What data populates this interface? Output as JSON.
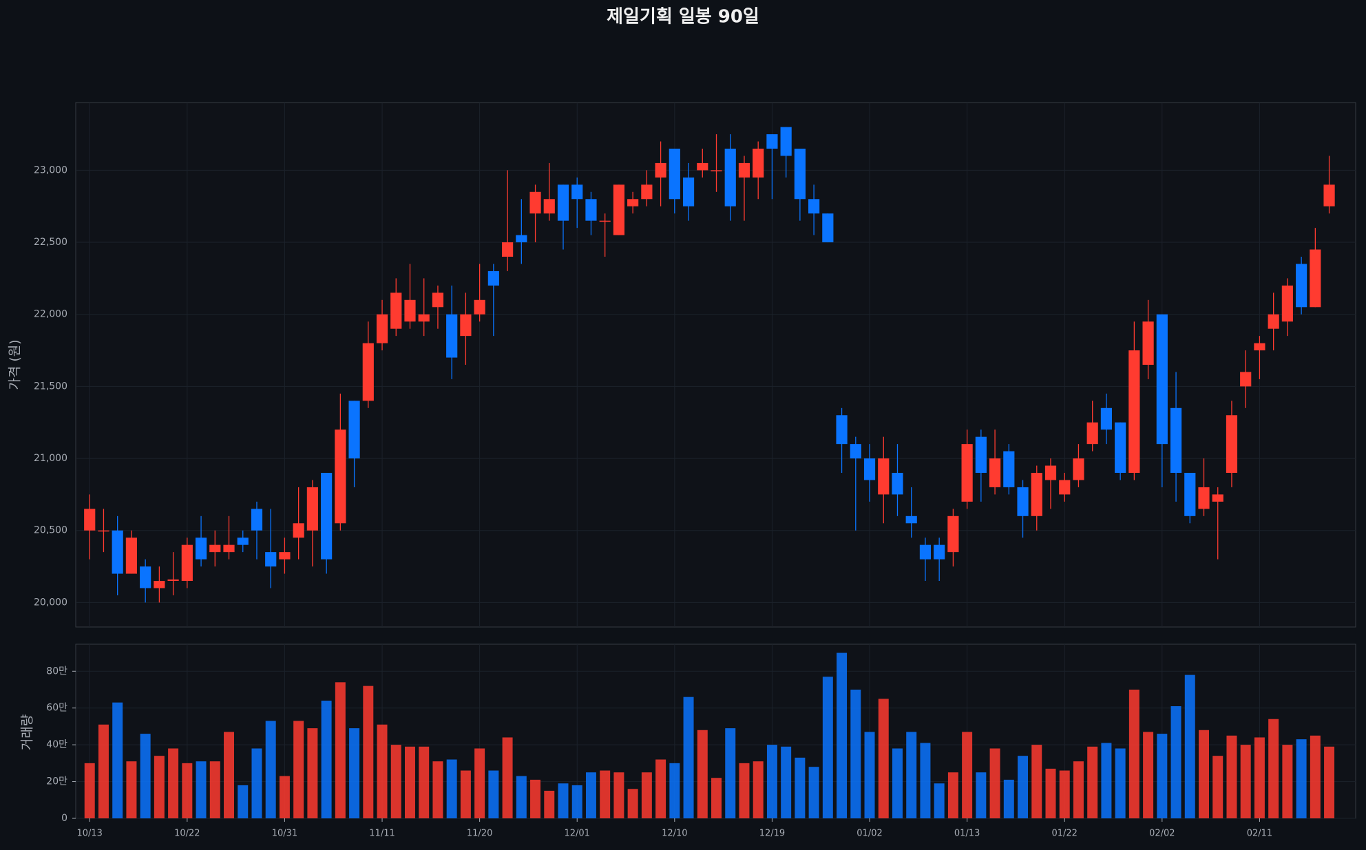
{
  "chart_data": {
    "type": "candlestick",
    "title": "제일기획 일봉 90일",
    "ylabel": "가격 (원)",
    "y2label": "거래량",
    "categories": [
      "10/13",
      null,
      null,
      null,
      null,
      null,
      null,
      "10/22",
      null,
      null,
      null,
      null,
      null,
      null,
      "10/31",
      null,
      null,
      null,
      null,
      null,
      null,
      "11/11",
      null,
      null,
      null,
      null,
      null,
      null,
      "11/20",
      null,
      null,
      null,
      null,
      null,
      null,
      "12/01",
      null,
      null,
      null,
      null,
      null,
      null,
      "12/10",
      null,
      null,
      null,
      null,
      null,
      null,
      "12/19",
      null,
      null,
      null,
      null,
      null,
      null,
      "01/02",
      null,
      null,
      null,
      null,
      null,
      null,
      "01/13",
      null,
      null,
      null,
      null,
      null,
      null,
      "01/22",
      null,
      null,
      null,
      null,
      null,
      null,
      "02/02",
      null,
      null,
      null,
      null,
      null,
      null,
      "02/11",
      null,
      null,
      null,
      null,
      null
    ],
    "open": [
      20500,
      20500,
      20500,
      20200,
      20250,
      20100,
      20150,
      20150,
      20450,
      20350,
      20350,
      20450,
      20650,
      20350,
      20300,
      20450,
      20500,
      20900,
      20550,
      21400,
      21400,
      21800,
      21900,
      21950,
      21950,
      22050,
      22000,
      21850,
      22000,
      22300,
      22400,
      22550,
      22700,
      22700,
      22900,
      22900,
      22800,
      22650,
      22550,
      22750,
      22800,
      22950,
      23150,
      22950,
      23000,
      23000,
      23150,
      22950,
      22950,
      23250,
      23300,
      23150,
      22800,
      22700,
      21300,
      21100,
      21000,
      20750,
      20900,
      20600,
      20400,
      20400,
      20350,
      20700,
      21150,
      20800,
      21050,
      20800,
      20600,
      20850,
      20750,
      20850,
      21100,
      21350,
      21250,
      20900,
      21650,
      22000,
      21350,
      20900,
      20650,
      20700,
      20900,
      21500,
      21750,
      21900,
      21950,
      22350,
      22050,
      22750
    ],
    "high": [
      20750,
      20650,
      20600,
      20500,
      20300,
      20250,
      20350,
      20450,
      20600,
      20500,
      20600,
      20500,
      20700,
      20650,
      20450,
      20800,
      20850,
      20900,
      21450,
      21400,
      21950,
      22100,
      22250,
      22350,
      22250,
      22200,
      22200,
      22150,
      22350,
      22350,
      23000,
      22800,
      22900,
      23050,
      22900,
      22950,
      22850,
      22700,
      22900,
      22850,
      23000,
      23200,
      23150,
      23050,
      23150,
      23250,
      23250,
      23100,
      23200,
      23250,
      23300,
      23150,
      22900,
      22700,
      21350,
      21150,
      21100,
      21150,
      21100,
      20800,
      20450,
      20450,
      20650,
      21200,
      21200,
      21200,
      21100,
      20850,
      20950,
      21000,
      20900,
      21100,
      21400,
      21450,
      21250,
      21950,
      22100,
      22000,
      21600,
      20900,
      21000,
      20800,
      21400,
      21750,
      21850,
      22150,
      22250,
      22400,
      22600,
      23100
    ],
    "low": [
      20300,
      20350,
      20050,
      20200,
      20000,
      20000,
      20050,
      20100,
      20250,
      20250,
      20300,
      20350,
      20300,
      20100,
      20200,
      20300,
      20250,
      20200,
      20500,
      20800,
      21350,
      21750,
      21850,
      21900,
      21850,
      21900,
      21550,
      21650,
      21950,
      21850,
      22300,
      22350,
      22500,
      22650,
      22450,
      22600,
      22550,
      22400,
      22550,
      22700,
      22750,
      22750,
      22700,
      22650,
      22950,
      22850,
      22650,
      22650,
      22800,
      22800,
      22950,
      22650,
      22550,
      22500,
      20900,
      20500,
      20700,
      20550,
      20600,
      20450,
      20150,
      20150,
      20250,
      20650,
      20700,
      20750,
      20750,
      20450,
      20500,
      20650,
      20700,
      20800,
      21050,
      21100,
      20850,
      20850,
      21550,
      20800,
      20700,
      20550,
      20600,
      20300,
      20800,
      21350,
      21550,
      21750,
      21850,
      22000,
      22050,
      22700
    ],
    "close": [
      20650,
      20500,
      20200,
      20450,
      20100,
      20150,
      20160,
      20400,
      20300,
      20400,
      20400,
      20400,
      20500,
      20250,
      20350,
      20550,
      20800,
      20300,
      21200,
      21000,
      21800,
      22000,
      22150,
      22100,
      22000,
      22150,
      21700,
      22000,
      22100,
      22200,
      22500,
      22500,
      22850,
      22800,
      22650,
      22800,
      22650,
      22650,
      22900,
      22800,
      22900,
      23050,
      22800,
      22750,
      23050,
      23000,
      22750,
      23050,
      23150,
      23150,
      23100,
      22800,
      22700,
      22500,
      21100,
      21000,
      20850,
      21000,
      20750,
      20550,
      20300,
      20300,
      20600,
      21100,
      20900,
      21000,
      20800,
      20600,
      20900,
      20950,
      20850,
      21000,
      21250,
      21200,
      20900,
      21750,
      21950,
      21100,
      20900,
      20600,
      20800,
      20750,
      21300,
      21600,
      21800,
      22000,
      22200,
      22050,
      22450,
      22900
    ],
    "volume": [
      300000,
      510000,
      630000,
      310000,
      460000,
      340000,
      380000,
      300000,
      310000,
      310000,
      470000,
      180000,
      380000,
      530000,
      230000,
      530000,
      490000,
      640000,
      740000,
      490000,
      720000,
      510000,
      400000,
      390000,
      390000,
      310000,
      320000,
      260000,
      380000,
      260000,
      440000,
      230000,
      210000,
      150000,
      190000,
      180000,
      250000,
      260000,
      250000,
      160000,
      250000,
      320000,
      300000,
      660000,
      480000,
      220000,
      490000,
      300000,
      310000,
      400000,
      390000,
      330000,
      280000,
      770000,
      900000,
      700000,
      470000,
      650000,
      380000,
      470000,
      410000,
      190000,
      250000,
      470000,
      250000,
      380000,
      210000,
      340000,
      400000,
      270000,
      260000,
      310000,
      390000,
      410000,
      380000,
      700000,
      470000,
      460000,
      610000,
      780000,
      480000,
      340000,
      450000,
      400000,
      440000,
      540000,
      400000,
      430000,
      450000,
      390000
    ],
    "up_color": "#ff3b30",
    "down_color": "#0a74ff",
    "ylim": [
      19830,
      23470
    ],
    "yticks": [
      {
        "value": 20000,
        "label": "20,000"
      },
      {
        "value": 20500,
        "label": "20,500"
      },
      {
        "value": 21000,
        "label": "21,000"
      },
      {
        "value": 21500,
        "label": "21,500"
      },
      {
        "value": 22000,
        "label": "22,000"
      },
      {
        "value": 22500,
        "label": "22,500"
      },
      {
        "value": 23000,
        "label": "23,000"
      }
    ],
    "y2lim": [
      0,
      947000
    ],
    "y2ticks": [
      0,
      {
        "value": 200000,
        "label": "20만"
      },
      {
        "value": 400000,
        "label": "40만"
      },
      {
        "value": 600000,
        "label": "60만"
      },
      {
        "value": 800000,
        "label": "80만"
      }
    ],
    "grid": true
  }
}
